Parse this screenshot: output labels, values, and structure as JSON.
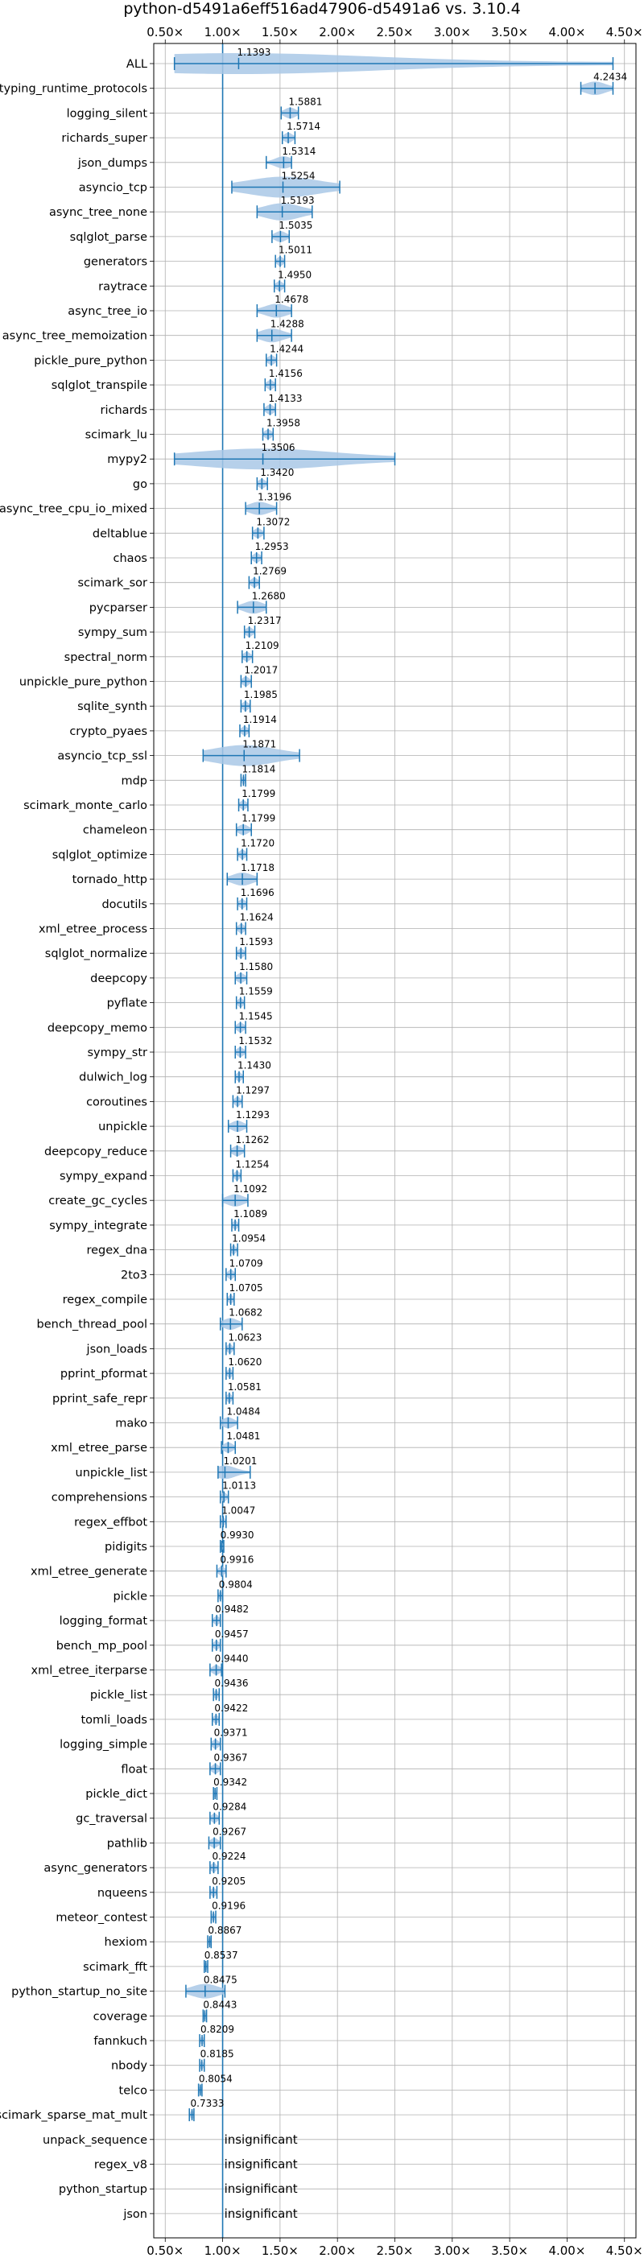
{
  "chart_data": {
    "type": "violin",
    "title": "python-d5491a6eff516ad47906-d5491a6 vs. 3.10.4",
    "xlabel": "",
    "ylabel": "",
    "xlim": [
      0.4,
      4.6
    ],
    "xticks": [
      {
        "value": 0.5,
        "label": "0.50×"
      },
      {
        "value": 1.0,
        "label": "1.00×"
      },
      {
        "value": 1.5,
        "label": "1.50×"
      },
      {
        "value": 2.0,
        "label": "2.00×"
      },
      {
        "value": 2.5,
        "label": "2.50×"
      },
      {
        "value": 3.0,
        "label": "3.00×"
      },
      {
        "value": 3.5,
        "label": "3.50×"
      },
      {
        "value": 4.0,
        "label": "4.00×"
      },
      {
        "value": 4.5,
        "label": "4.50×"
      }
    ],
    "reference_line": 1.0,
    "grid": true,
    "color": "#1f77b4",
    "fill_color": "#a9c8e6",
    "benchmarks": [
      {
        "name": "ALL",
        "value": 1.1393,
        "label": "1.1393",
        "min": 0.58,
        "max": 4.4
      },
      {
        "name": "typing_runtime_protocols",
        "value": 4.2434,
        "label": "4.2434",
        "min": 4.12,
        "max": 4.4
      },
      {
        "name": "logging_silent",
        "value": 1.5881,
        "label": "1.5881",
        "min": 1.51,
        "max": 1.66
      },
      {
        "name": "richards_super",
        "value": 1.5714,
        "label": "1.5714",
        "min": 1.52,
        "max": 1.63
      },
      {
        "name": "json_dumps",
        "value": 1.5314,
        "label": "1.5314",
        "min": 1.38,
        "max": 1.6
      },
      {
        "name": "asyncio_tcp",
        "value": 1.5254,
        "label": "1.5254",
        "min": 1.08,
        "max": 2.02
      },
      {
        "name": "async_tree_none",
        "value": 1.5193,
        "label": "1.5193",
        "min": 1.3,
        "max": 1.78
      },
      {
        "name": "sqlglot_parse",
        "value": 1.5035,
        "label": "1.5035",
        "min": 1.43,
        "max": 1.58
      },
      {
        "name": "generators",
        "value": 1.5011,
        "label": "1.5011",
        "min": 1.46,
        "max": 1.54
      },
      {
        "name": "raytrace",
        "value": 1.495,
        "label": "1.4950",
        "min": 1.45,
        "max": 1.54
      },
      {
        "name": "async_tree_io",
        "value": 1.4678,
        "label": "1.4678",
        "min": 1.3,
        "max": 1.6
      },
      {
        "name": "async_tree_memoization",
        "value": 1.4288,
        "label": "1.4288",
        "min": 1.3,
        "max": 1.6
      },
      {
        "name": "pickle_pure_python",
        "value": 1.4244,
        "label": "1.4244",
        "min": 1.38,
        "max": 1.47
      },
      {
        "name": "sqlglot_transpile",
        "value": 1.4156,
        "label": "1.4156",
        "min": 1.37,
        "max": 1.46
      },
      {
        "name": "richards",
        "value": 1.4133,
        "label": "1.4133",
        "min": 1.36,
        "max": 1.46
      },
      {
        "name": "scimark_lu",
        "value": 1.3958,
        "label": "1.3958",
        "min": 1.35,
        "max": 1.44
      },
      {
        "name": "mypy2",
        "value": 1.3506,
        "label": "1.3506",
        "min": 0.58,
        "max": 2.5
      },
      {
        "name": "go",
        "value": 1.342,
        "label": "1.3420",
        "min": 1.3,
        "max": 1.39
      },
      {
        "name": "async_tree_cpu_io_mixed",
        "value": 1.3196,
        "label": "1.3196",
        "min": 1.2,
        "max": 1.47
      },
      {
        "name": "deltablue",
        "value": 1.3072,
        "label": "1.3072",
        "min": 1.26,
        "max": 1.36
      },
      {
        "name": "chaos",
        "value": 1.2953,
        "label": "1.2953",
        "min": 1.25,
        "max": 1.34
      },
      {
        "name": "scimark_sor",
        "value": 1.2769,
        "label": "1.2769",
        "min": 1.23,
        "max": 1.32
      },
      {
        "name": "pycparser",
        "value": 1.268,
        "label": "1.2680",
        "min": 1.13,
        "max": 1.38
      },
      {
        "name": "sympy_sum",
        "value": 1.2317,
        "label": "1.2317",
        "min": 1.19,
        "max": 1.28
      },
      {
        "name": "spectral_norm",
        "value": 1.2109,
        "label": "1.2109",
        "min": 1.17,
        "max": 1.26
      },
      {
        "name": "unpickle_pure_python",
        "value": 1.2017,
        "label": "1.2017",
        "min": 1.16,
        "max": 1.25
      },
      {
        "name": "sqlite_synth",
        "value": 1.1985,
        "label": "1.1985",
        "min": 1.16,
        "max": 1.24
      },
      {
        "name": "crypto_pyaes",
        "value": 1.1914,
        "label": "1.1914",
        "min": 1.15,
        "max": 1.23
      },
      {
        "name": "asyncio_tcp_ssl",
        "value": 1.1871,
        "label": "1.1871",
        "min": 0.83,
        "max": 1.67
      },
      {
        "name": "mdp",
        "value": 1.1814,
        "label": "1.1814",
        "min": 1.16,
        "max": 1.2
      },
      {
        "name": "scimark_monte_carlo",
        "value": 1.1799,
        "label": "1.1799",
        "min": 1.14,
        "max": 1.22
      },
      {
        "name": "chameleon",
        "value": 1.1799,
        "label": "1.1799",
        "min": 1.12,
        "max": 1.25
      },
      {
        "name": "sqlglot_optimize",
        "value": 1.172,
        "label": "1.1720",
        "min": 1.13,
        "max": 1.21
      },
      {
        "name": "tornado_http",
        "value": 1.1718,
        "label": "1.1718",
        "min": 1.04,
        "max": 1.3
      },
      {
        "name": "docutils",
        "value": 1.1696,
        "label": "1.1696",
        "min": 1.13,
        "max": 1.21
      },
      {
        "name": "xml_etree_process",
        "value": 1.1624,
        "label": "1.1624",
        "min": 1.12,
        "max": 1.2
      },
      {
        "name": "sqlglot_normalize",
        "value": 1.1593,
        "label": "1.1593",
        "min": 1.12,
        "max": 1.2
      },
      {
        "name": "deepcopy",
        "value": 1.158,
        "label": "1.1580",
        "min": 1.11,
        "max": 1.21
      },
      {
        "name": "pyflate",
        "value": 1.1559,
        "label": "1.1559",
        "min": 1.12,
        "max": 1.19
      },
      {
        "name": "deepcopy_memo",
        "value": 1.1545,
        "label": "1.1545",
        "min": 1.11,
        "max": 1.2
      },
      {
        "name": "sympy_str",
        "value": 1.1532,
        "label": "1.1532",
        "min": 1.11,
        "max": 1.2
      },
      {
        "name": "dulwich_log",
        "value": 1.143,
        "label": "1.1430",
        "min": 1.11,
        "max": 1.18
      },
      {
        "name": "coroutines",
        "value": 1.1297,
        "label": "1.1297",
        "min": 1.09,
        "max": 1.17
      },
      {
        "name": "unpickle",
        "value": 1.1293,
        "label": "1.1293",
        "min": 1.05,
        "max": 1.21
      },
      {
        "name": "deepcopy_reduce",
        "value": 1.1262,
        "label": "1.1262",
        "min": 1.07,
        "max": 1.19
      },
      {
        "name": "sympy_expand",
        "value": 1.1254,
        "label": "1.1254",
        "min": 1.09,
        "max": 1.16
      },
      {
        "name": "create_gc_cycles",
        "value": 1.1092,
        "label": "1.1092",
        "min": 1.0,
        "max": 1.22
      },
      {
        "name": "sympy_integrate",
        "value": 1.1089,
        "label": "1.1089",
        "min": 1.08,
        "max": 1.14
      },
      {
        "name": "regex_dna",
        "value": 1.0954,
        "label": "1.0954",
        "min": 1.07,
        "max": 1.13
      },
      {
        "name": "2to3",
        "value": 1.0709,
        "label": "1.0709",
        "min": 1.03,
        "max": 1.11
      },
      {
        "name": "regex_compile",
        "value": 1.0705,
        "label": "1.0705",
        "min": 1.04,
        "max": 1.1
      },
      {
        "name": "bench_thread_pool",
        "value": 1.0682,
        "label": "1.0682",
        "min": 0.98,
        "max": 1.17
      },
      {
        "name": "json_loads",
        "value": 1.0623,
        "label": "1.0623",
        "min": 1.03,
        "max": 1.1
      },
      {
        "name": "pprint_pformat",
        "value": 1.062,
        "label": "1.0620",
        "min": 1.03,
        "max": 1.09
      },
      {
        "name": "pprint_safe_repr",
        "value": 1.0581,
        "label": "1.0581",
        "min": 1.03,
        "max": 1.09
      },
      {
        "name": "mako",
        "value": 1.0484,
        "label": "1.0484",
        "min": 0.98,
        "max": 1.13
      },
      {
        "name": "xml_etree_parse",
        "value": 1.0481,
        "label": "1.0481",
        "min": 0.99,
        "max": 1.11
      },
      {
        "name": "unpickle_list",
        "value": 1.0201,
        "label": "1.0201",
        "min": 0.96,
        "max": 1.24
      },
      {
        "name": "comprehensions",
        "value": 1.0113,
        "label": "1.0113",
        "min": 0.98,
        "max": 1.05
      },
      {
        "name": "regex_effbot",
        "value": 1.0047,
        "label": "1.0047",
        "min": 0.98,
        "max": 1.03
      },
      {
        "name": "pidigits",
        "value": 0.993,
        "label": "0.9930",
        "min": 0.98,
        "max": 1.01
      },
      {
        "name": "xml_etree_generate",
        "value": 0.9916,
        "label": "0.9916",
        "min": 0.95,
        "max": 1.03
      },
      {
        "name": "pickle",
        "value": 0.9804,
        "label": "0.9804",
        "min": 0.96,
        "max": 1.0
      },
      {
        "name": "logging_format",
        "value": 0.9482,
        "label": "0.9482",
        "min": 0.91,
        "max": 0.98
      },
      {
        "name": "bench_mp_pool",
        "value": 0.9457,
        "label": "0.9457",
        "min": 0.91,
        "max": 0.98
      },
      {
        "name": "xml_etree_iterparse",
        "value": 0.944,
        "label": "0.9440",
        "min": 0.89,
        "max": 0.99
      },
      {
        "name": "pickle_list",
        "value": 0.9436,
        "label": "0.9436",
        "min": 0.92,
        "max": 0.97
      },
      {
        "name": "tomli_loads",
        "value": 0.9422,
        "label": "0.9422",
        "min": 0.91,
        "max": 0.97
      },
      {
        "name": "logging_simple",
        "value": 0.9371,
        "label": "0.9371",
        "min": 0.9,
        "max": 0.98
      },
      {
        "name": "float",
        "value": 0.9367,
        "label": "0.9367",
        "min": 0.89,
        "max": 0.98
      },
      {
        "name": "pickle_dict",
        "value": 0.9342,
        "label": "0.9342",
        "min": 0.92,
        "max": 0.95
      },
      {
        "name": "gc_traversal",
        "value": 0.9284,
        "label": "0.9284",
        "min": 0.89,
        "max": 0.97
      },
      {
        "name": "pathlib",
        "value": 0.9267,
        "label": "0.9267",
        "min": 0.88,
        "max": 0.98
      },
      {
        "name": "async_generators",
        "value": 0.9224,
        "label": "0.9224",
        "min": 0.89,
        "max": 0.96
      },
      {
        "name": "nqueens",
        "value": 0.9205,
        "label": "0.9205",
        "min": 0.89,
        "max": 0.95
      },
      {
        "name": "meteor_contest",
        "value": 0.9196,
        "label": "0.9196",
        "min": 0.9,
        "max": 0.94
      },
      {
        "name": "hexiom",
        "value": 0.8867,
        "label": "0.8867",
        "min": 0.87,
        "max": 0.9
      },
      {
        "name": "scimark_fft",
        "value": 0.8537,
        "label": "0.8537",
        "min": 0.84,
        "max": 0.87
      },
      {
        "name": "python_startup_no_site",
        "value": 0.8475,
        "label": "0.8475",
        "min": 0.68,
        "max": 1.02
      },
      {
        "name": "coverage",
        "value": 0.8443,
        "label": "0.8443",
        "min": 0.83,
        "max": 0.86
      },
      {
        "name": "fannkuch",
        "value": 0.8209,
        "label": "0.8209",
        "min": 0.8,
        "max": 0.84
      },
      {
        "name": "nbody",
        "value": 0.8185,
        "label": "0.8185",
        "min": 0.8,
        "max": 0.84
      },
      {
        "name": "telco",
        "value": 0.8054,
        "label": "0.8054",
        "min": 0.79,
        "max": 0.82
      },
      {
        "name": "scimark_sparse_mat_mult",
        "value": 0.7333,
        "label": "0.7333",
        "min": 0.71,
        "max": 0.75
      },
      {
        "name": "unpack_sequence",
        "value": null,
        "label": "insignificant"
      },
      {
        "name": "regex_v8",
        "value": null,
        "label": "insignificant"
      },
      {
        "name": "python_startup",
        "value": null,
        "label": "insignificant"
      },
      {
        "name": "json",
        "value": null,
        "label": "insignificant"
      }
    ]
  }
}
